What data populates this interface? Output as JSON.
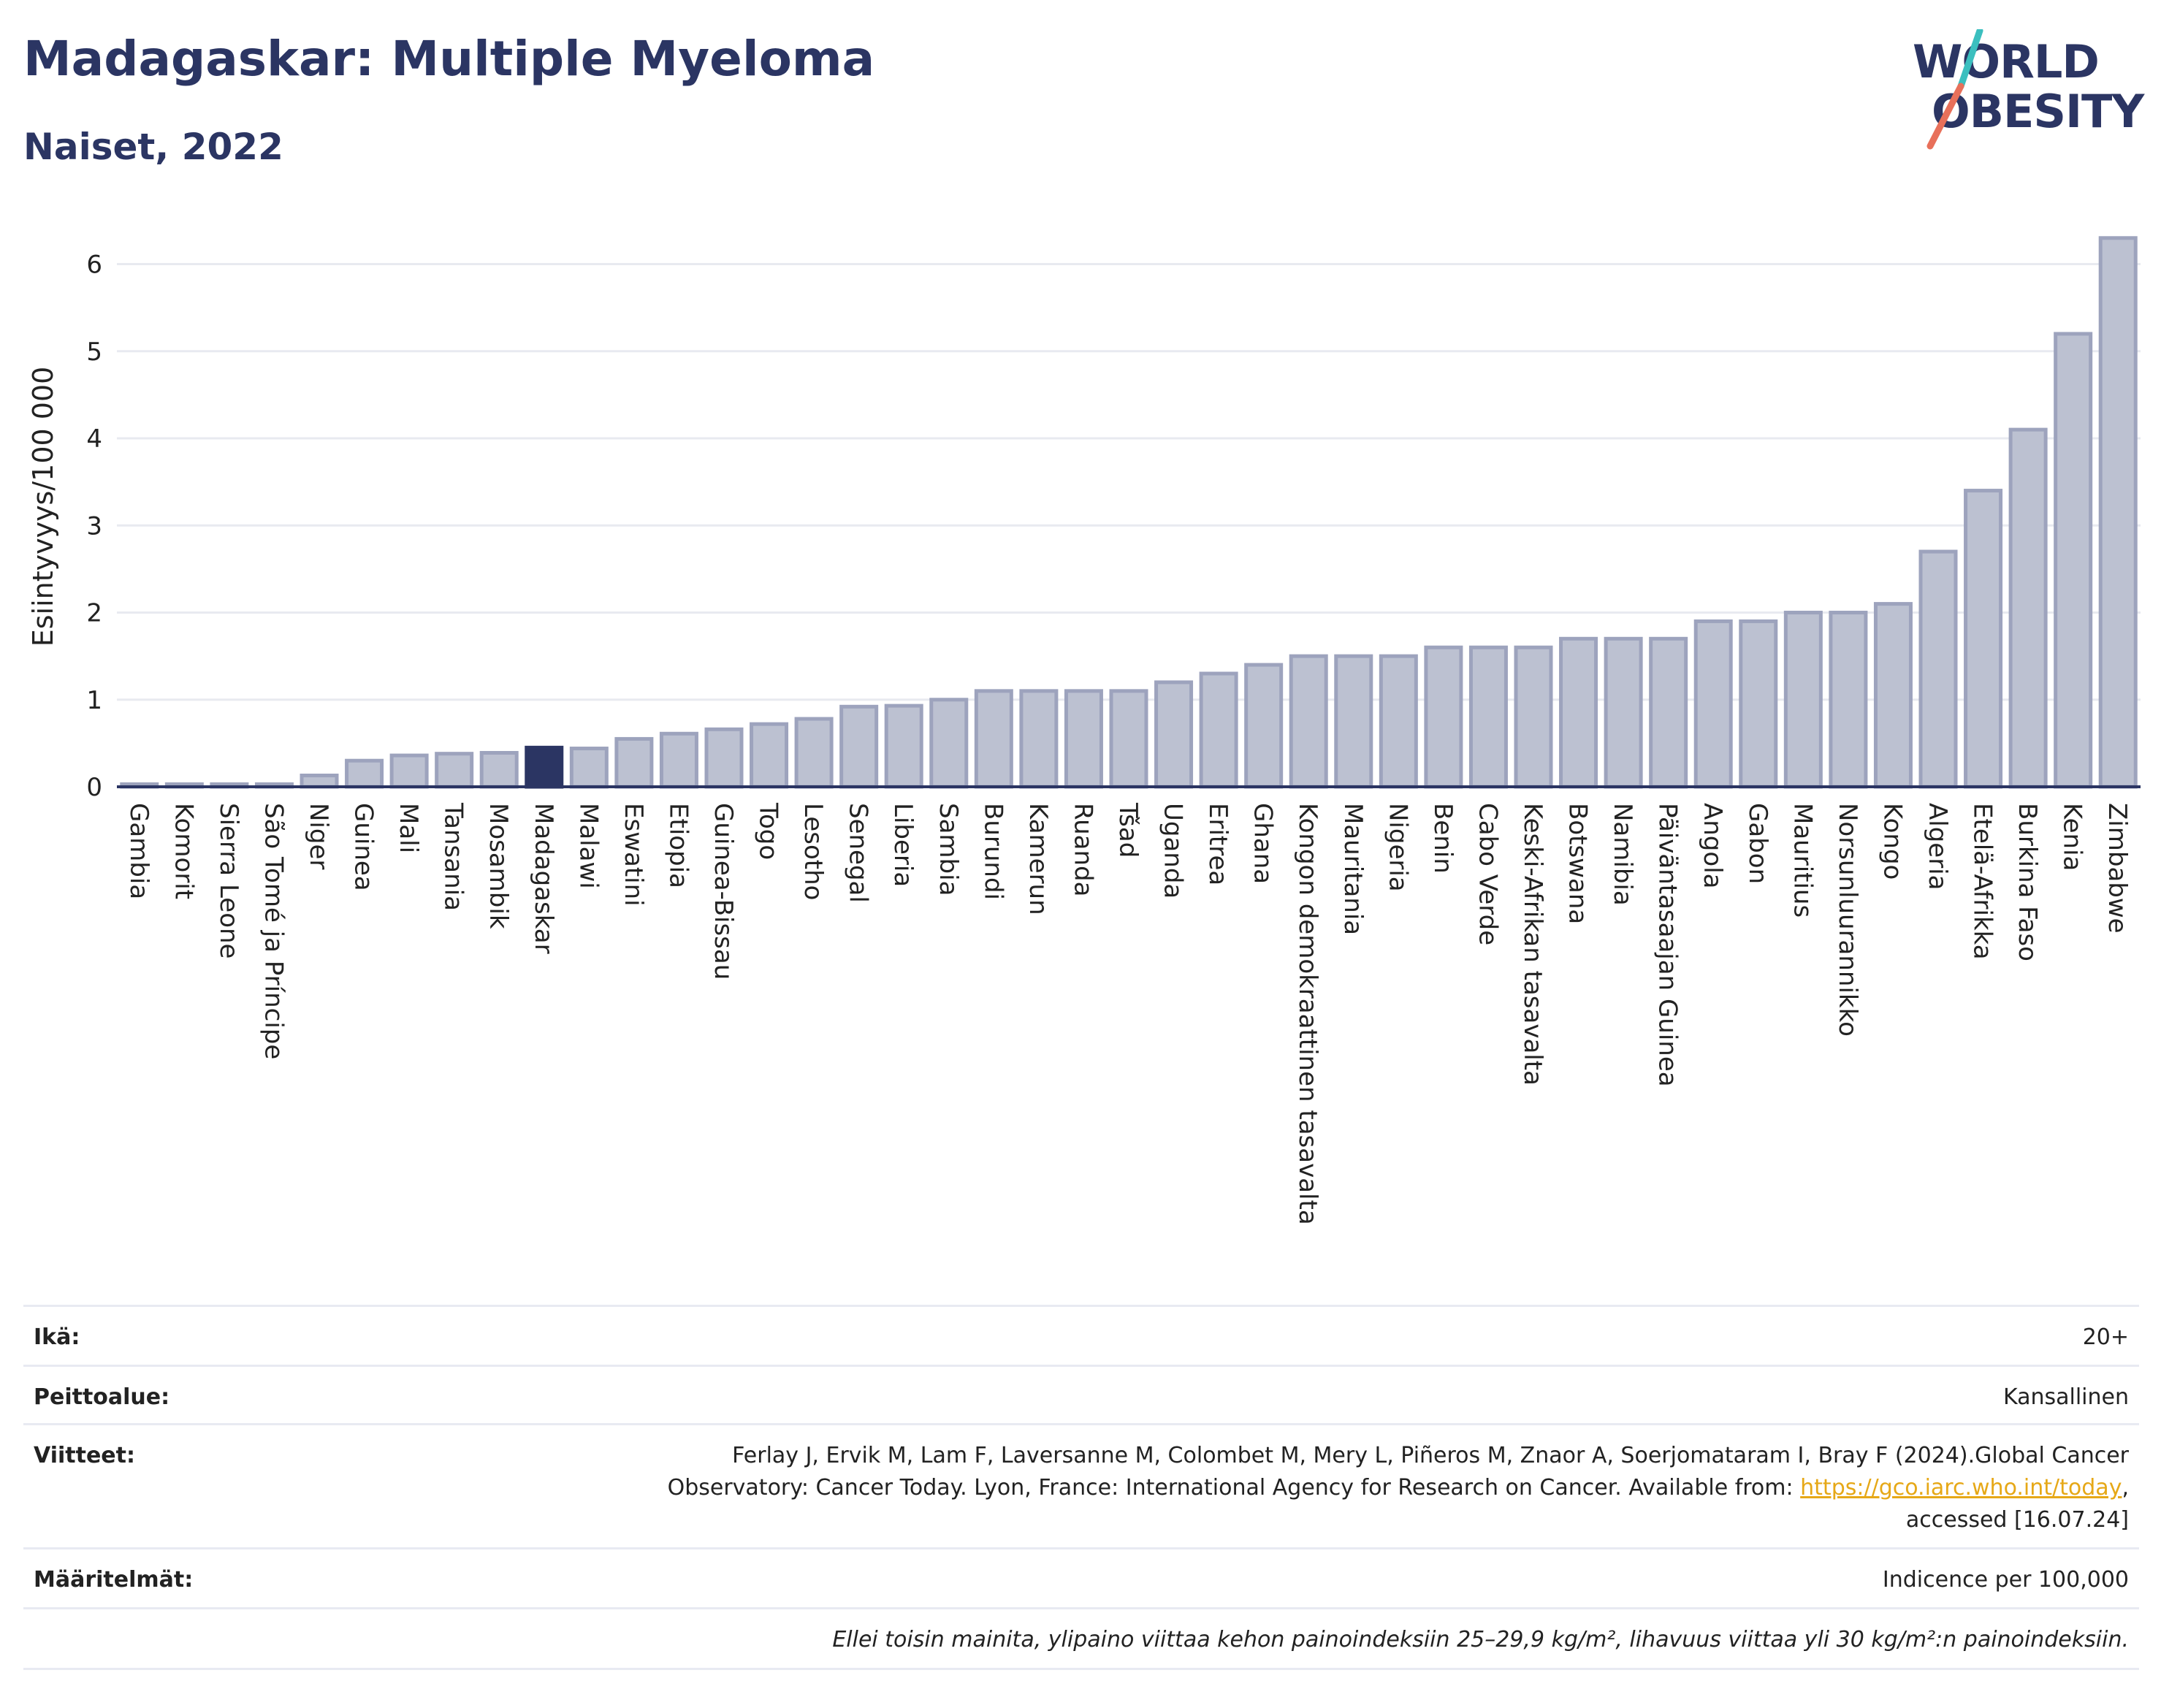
{
  "title": "Madagaskar: Multiple Myeloma",
  "subtitle": "Naiset, 2022",
  "logo": {
    "line1": "WORLD",
    "line2": "OBESITY"
  },
  "chart_data": {
    "type": "bar",
    "ylabel": "Esiintyvyys/100 000",
    "ylim": [
      0,
      6.6
    ],
    "yticks": [
      0,
      1,
      2,
      3,
      4,
      5,
      6
    ],
    "grid": true,
    "highlight": "Madagaskar",
    "bar_color": "#bcc1d1",
    "bar_edge_color": "#9da3bd",
    "highlight_color": "#2b3563",
    "categories": [
      "Gambia",
      "Komorit",
      "Sierra Leone",
      "São Tomé ja Príncipe",
      "Niger",
      "Guinea",
      "Mali",
      "Tansania",
      "Mosambik",
      "Madagaskar",
      "Malawi",
      "Eswatini",
      "Etiopia",
      "Guinea-Bissau",
      "Togo",
      "Lesotho",
      "Senegal",
      "Liberia",
      "Sambia",
      "Burundi",
      "Kamerun",
      "Ruanda",
      "Tšad",
      "Uganda",
      "Eritrea",
      "Ghana",
      "Kongon demokraattinen tasavalta",
      "Mauritania",
      "Nigeria",
      "Benin",
      "Cabo Verde",
      "Keski-Afrikan tasavalta",
      "Botswana",
      "Namibia",
      "Päiväntasaajan Guinea",
      "Angola",
      "Gabon",
      "Mauritius",
      "Norsunluurannikko",
      "Kongo",
      "Algeria",
      "Etelä-Afrikka",
      "Burkina Faso",
      "Kenia",
      "Zimbabwe"
    ],
    "values": [
      0.03,
      0.03,
      0.03,
      0.03,
      0.13,
      0.3,
      0.36,
      0.38,
      0.39,
      0.45,
      0.44,
      0.55,
      0.61,
      0.66,
      0.72,
      0.78,
      0.92,
      0.93,
      1.0,
      1.1,
      1.1,
      1.1,
      1.1,
      1.2,
      1.3,
      1.4,
      1.5,
      1.5,
      1.5,
      1.6,
      1.6,
      1.6,
      1.7,
      1.7,
      1.7,
      1.9,
      1.9,
      2.0,
      2.0,
      2.1,
      2.7,
      3.4,
      4.1,
      5.2,
      6.3
    ]
  },
  "meta": {
    "age_label": "Ikä:",
    "age_value": "20+",
    "coverage_label": "Peittoalue:",
    "coverage_value": "Kansallinen",
    "refs_label": "Viitteet:",
    "refs_line1": "Ferlay J, Ervik M, Lam F, Laversanne M, Colombet M, Mery L, Piñeros M, Znaor A, Soerjomataram I, Bray F (2024).Global Cancer",
    "refs_line2": "Observatory: Cancer Today. Lyon, France: International Agency for Research on Cancer. Available from: ",
    "refs_link": "https://gco.iarc.who.int/today",
    "refs_line2_end": ",",
    "refs_line3": "accessed [16.07.24]",
    "defs_label": "Määritelmät:",
    "defs_value": "Indicence per 100,000",
    "note": "Ellei toisin mainita, ylipaino viittaa kehon painoindeksiin 25–29,9 kg/m², lihavuus viittaa yli 30 kg/m²:n painoindeksiin."
  }
}
